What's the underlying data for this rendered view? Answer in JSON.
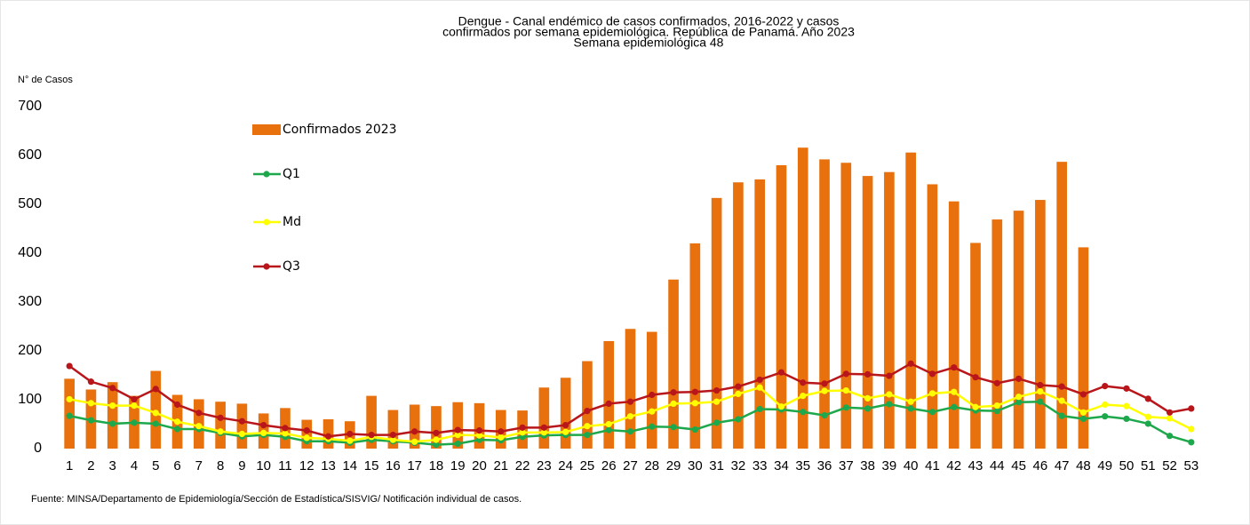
{
  "chart_data": {
    "type": "bar_line",
    "title": [
      "Dengue - Canal endémico de casos confirmados, 2016-2022 y casos",
      "confirmados por semana epidemiológica. República de Panamá. Año 2023",
      "Semana epidemiológica 48"
    ],
    "y_label": "N° de Casos",
    "source": "Fuente: MINSA/Departamento de Epidemiología/Sección de Estadística/SISVIG/ Notificación individual de casos.",
    "categories": [
      "1",
      "2",
      "3",
      "4",
      "5",
      "6",
      "7",
      "8",
      "9",
      "10",
      "11",
      "12",
      "13",
      "14",
      "15",
      "16",
      "17",
      "18",
      "19",
      "20",
      "21",
      "22",
      "23",
      "24",
      "25",
      "26",
      "27",
      "28",
      "29",
      "30",
      "31",
      "32",
      "33",
      "34",
      "35",
      "36",
      "37",
      "38",
      "39",
      "40",
      "41",
      "42",
      "43",
      "44",
      "45",
      "46",
      "47",
      "48",
      "49",
      "50",
      "51",
      "52",
      "53"
    ],
    "ylim": [
      0,
      700
    ],
    "yticks": [
      0,
      100,
      200,
      300,
      400,
      500,
      600,
      700
    ],
    "series": [
      {
        "name": "Confirmados 2023",
        "kind": "bar",
        "color": "#e8710e",
        "values": [
          143,
          121,
          136,
          108,
          159,
          110,
          101,
          96,
          92,
          72,
          83,
          59,
          60,
          56,
          108,
          79,
          90,
          87,
          95,
          93,
          79,
          78,
          125,
          145,
          179,
          220,
          245,
          239,
          346,
          420,
          513,
          545,
          551,
          580,
          616,
          592,
          585,
          558,
          566,
          606,
          541,
          506,
          421,
          469,
          487,
          509,
          587,
          412,
          null,
          null,
          null,
          null,
          null
        ]
      },
      {
        "name": "Q1",
        "kind": "line",
        "color": "#1ea84c",
        "values": [
          67,
          58,
          51,
          53,
          51,
          40,
          40,
          32,
          25,
          28,
          24,
          15,
          15,
          12,
          18,
          15,
          12,
          8,
          10,
          18,
          17,
          24,
          27,
          28,
          28,
          38,
          35,
          45,
          44,
          39,
          53,
          60,
          81,
          80,
          75,
          68,
          84,
          82,
          91,
          82,
          75,
          85,
          78,
          77,
          95,
          96,
          67,
          61,
          66,
          61,
          51,
          26,
          13
        ]
      },
      {
        "name": "Md",
        "kind": "line",
        "color": "#ffff00",
        "values": [
          101,
          93,
          88,
          88,
          73,
          55,
          46,
          35,
          30,
          32,
          31,
          22,
          20,
          16,
          24,
          18,
          14,
          18,
          28,
          27,
          23,
          33,
          33,
          34,
          46,
          50,
          66,
          76,
          92,
          93,
          96,
          112,
          125,
          86,
          108,
          118,
          119,
          103,
          111,
          96,
          113,
          116,
          85,
          88,
          106,
          117,
          98,
          74,
          90,
          87,
          65,
          62,
          40
        ]
      },
      {
        "name": "Q3",
        "kind": "line",
        "color": "#b8161a",
        "values": [
          169,
          137,
          124,
          101,
          122,
          90,
          73,
          63,
          56,
          48,
          42,
          37,
          25,
          30,
          28,
          28,
          35,
          32,
          38,
          37,
          35,
          43,
          43,
          48,
          77,
          92,
          96,
          110,
          115,
          116,
          119,
          127,
          141,
          156,
          135,
          133,
          153,
          152,
          149,
          174,
          153,
          166,
          146,
          134,
          143,
          130,
          127,
          111,
          128,
          123,
          102,
          74,
          82
        ]
      }
    ]
  }
}
